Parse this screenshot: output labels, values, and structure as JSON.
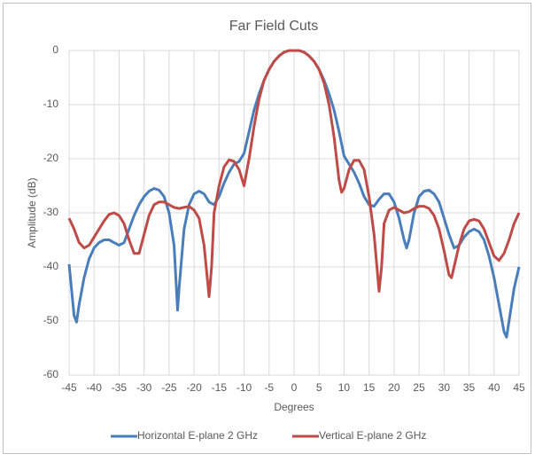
{
  "chart_data": {
    "type": "line",
    "title": "Far Field Cuts",
    "xlabel": "Degrees",
    "ylabel": "Amplitude (dB)",
    "xlim": [
      -45,
      45
    ],
    "xticks": [
      -45,
      -40,
      -35,
      -30,
      -25,
      -20,
      -15,
      -10,
      -5,
      0,
      5,
      10,
      15,
      20,
      25,
      30,
      35,
      40,
      45
    ],
    "ylim": [
      -60,
      0
    ],
    "yticks": [
      0,
      -10,
      -20,
      -30,
      -40,
      -50,
      -60
    ],
    "grid": true,
    "legend": "bottom",
    "series": [
      {
        "name": "Horizontal E-plane 2 GHz",
        "color": "#4a7ebb",
        "x": [
          -45,
          -44,
          -43.5,
          -43,
          -42,
          -41,
          -40,
          -39,
          -38,
          -37,
          -36,
          -35,
          -34,
          -33,
          -32,
          -31,
          -30,
          -29,
          -28,
          -27,
          -26,
          -25,
          -24,
          -23.3,
          -23,
          -22,
          -21,
          -20,
          -19,
          -18,
          -17,
          -16,
          -15,
          -14,
          -13,
          -12,
          -11,
          -10,
          -9,
          -8,
          -7,
          -6,
          -5,
          -4,
          -3,
          -2,
          -1,
          0,
          1,
          2,
          3,
          4,
          5,
          6,
          7,
          8,
          9,
          10,
          11,
          12,
          13,
          14,
          15,
          16,
          17,
          18,
          19,
          20,
          21,
          22,
          22.5,
          23,
          24,
          25,
          26,
          27,
          28,
          29,
          30,
          31,
          32,
          33,
          34,
          35,
          36,
          37,
          38,
          39,
          40,
          41,
          42,
          42.5,
          43,
          44,
          45
        ],
        "values": [
          -39.5,
          -49,
          -50.2,
          -47,
          -42,
          -38.5,
          -36.5,
          -35.5,
          -35,
          -35,
          -35.5,
          -36,
          -35.5,
          -33,
          -30.5,
          -28.5,
          -27,
          -26,
          -25.5,
          -25.8,
          -27,
          -30,
          -36,
          -48,
          -44,
          -33,
          -28.5,
          -26.5,
          -26,
          -26.5,
          -28,
          -28.5,
          -27,
          -24.5,
          -22.5,
          -21,
          -20.5,
          -19,
          -15,
          -11,
          -8,
          -5.5,
          -3.5,
          -2,
          -1,
          -0.3,
          0,
          0,
          0,
          -0.3,
          -1,
          -2,
          -3.5,
          -5.5,
          -8,
          -11,
          -15,
          -19.5,
          -21,
          -22.5,
          -24.5,
          -27,
          -28.5,
          -28.8,
          -27.5,
          -26.5,
          -26.5,
          -28,
          -31,
          -35,
          -36.5,
          -35,
          -30,
          -27,
          -26,
          -25.8,
          -26.5,
          -28,
          -31,
          -34,
          -36.5,
          -36,
          -34.5,
          -33.5,
          -33,
          -33.5,
          -35,
          -38,
          -42,
          -47,
          -52,
          -53,
          -50,
          -44,
          -40
        ]
      },
      {
        "name": "Vertical E-plane 2 GHz",
        "color": "#be4b48",
        "x": [
          -45,
          -44,
          -43,
          -42,
          -41,
          -40,
          -39,
          -38,
          -37,
          -36,
          -35,
          -34,
          -33,
          -32,
          -31,
          -30,
          -29,
          -28,
          -27,
          -26,
          -25,
          -24,
          -23,
          -22,
          -21,
          -20,
          -19,
          -18,
          -17,
          -16.5,
          -16,
          -15,
          -14,
          -13,
          -12,
          -11,
          -10,
          -9,
          -8,
          -7,
          -6,
          -5,
          -4,
          -3,
          -2,
          -1,
          0,
          1,
          2,
          3,
          4,
          5,
          6,
          7,
          8,
          9,
          9.5,
          10,
          11,
          12,
          13,
          14,
          15,
          16,
          17,
          17.5,
          18,
          19,
          20,
          21,
          22,
          23,
          24,
          25,
          26,
          27,
          28,
          29,
          30,
          31,
          31.5,
          32,
          33,
          34,
          35,
          36,
          37,
          38,
          39,
          40,
          41,
          42,
          43,
          44,
          45
        ],
        "values": [
          -31,
          -33,
          -35.5,
          -36.5,
          -36,
          -34.5,
          -33,
          -31.5,
          -30.3,
          -30,
          -30.5,
          -32,
          -35,
          -37.5,
          -37.5,
          -34,
          -30.5,
          -28.5,
          -28,
          -28,
          -28.5,
          -29,
          -29.2,
          -29,
          -28.8,
          -29.5,
          -31,
          -36,
          -45.5,
          -40,
          -30,
          -25,
          -21.5,
          -20.2,
          -20.5,
          -22,
          -25,
          -20,
          -14,
          -9,
          -5.5,
          -3.5,
          -2,
          -1,
          -0.3,
          0,
          0,
          0,
          -0.3,
          -1,
          -2,
          -3.5,
          -6,
          -10,
          -16,
          -24,
          -26.2,
          -25.5,
          -22,
          -20.3,
          -20.3,
          -22,
          -27,
          -34,
          -44.5,
          -40,
          -32,
          -29.5,
          -29,
          -29.5,
          -30,
          -29.8,
          -29.2,
          -28.8,
          -28.8,
          -29.2,
          -30.5,
          -33,
          -37,
          -41.5,
          -42,
          -40,
          -36,
          -33,
          -31.5,
          -31.2,
          -31.5,
          -33,
          -35.5,
          -38,
          -38.8,
          -37.5,
          -35,
          -32,
          -30
        ]
      }
    ]
  }
}
